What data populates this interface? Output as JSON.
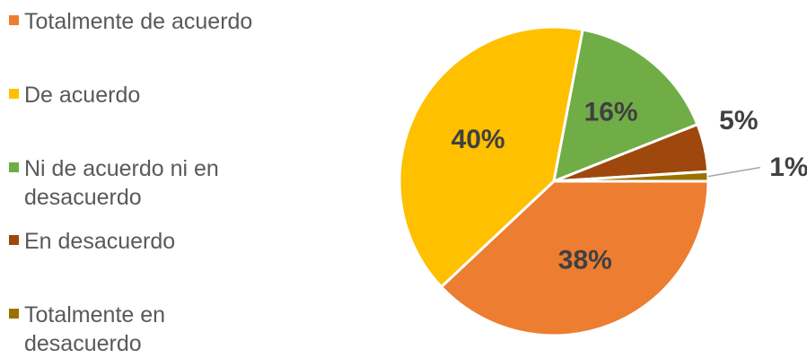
{
  "chart_data": {
    "type": "pie",
    "categories": [
      "Totalmente de acuerdo",
      "De acuerdo",
      "Ni de acuerdo ni en desacuerdo",
      "En desacuerdo",
      "Totalmente en desacuerdo"
    ],
    "values": [
      38,
      40,
      16,
      5,
      1
    ],
    "data_labels": [
      "38%",
      "40%",
      "16%",
      "5%",
      "1%"
    ],
    "colors": [
      "#ED7D31",
      "#FFC000",
      "#70AD47",
      "#9E480E",
      "#997300"
    ],
    "legend_position": "left"
  }
}
